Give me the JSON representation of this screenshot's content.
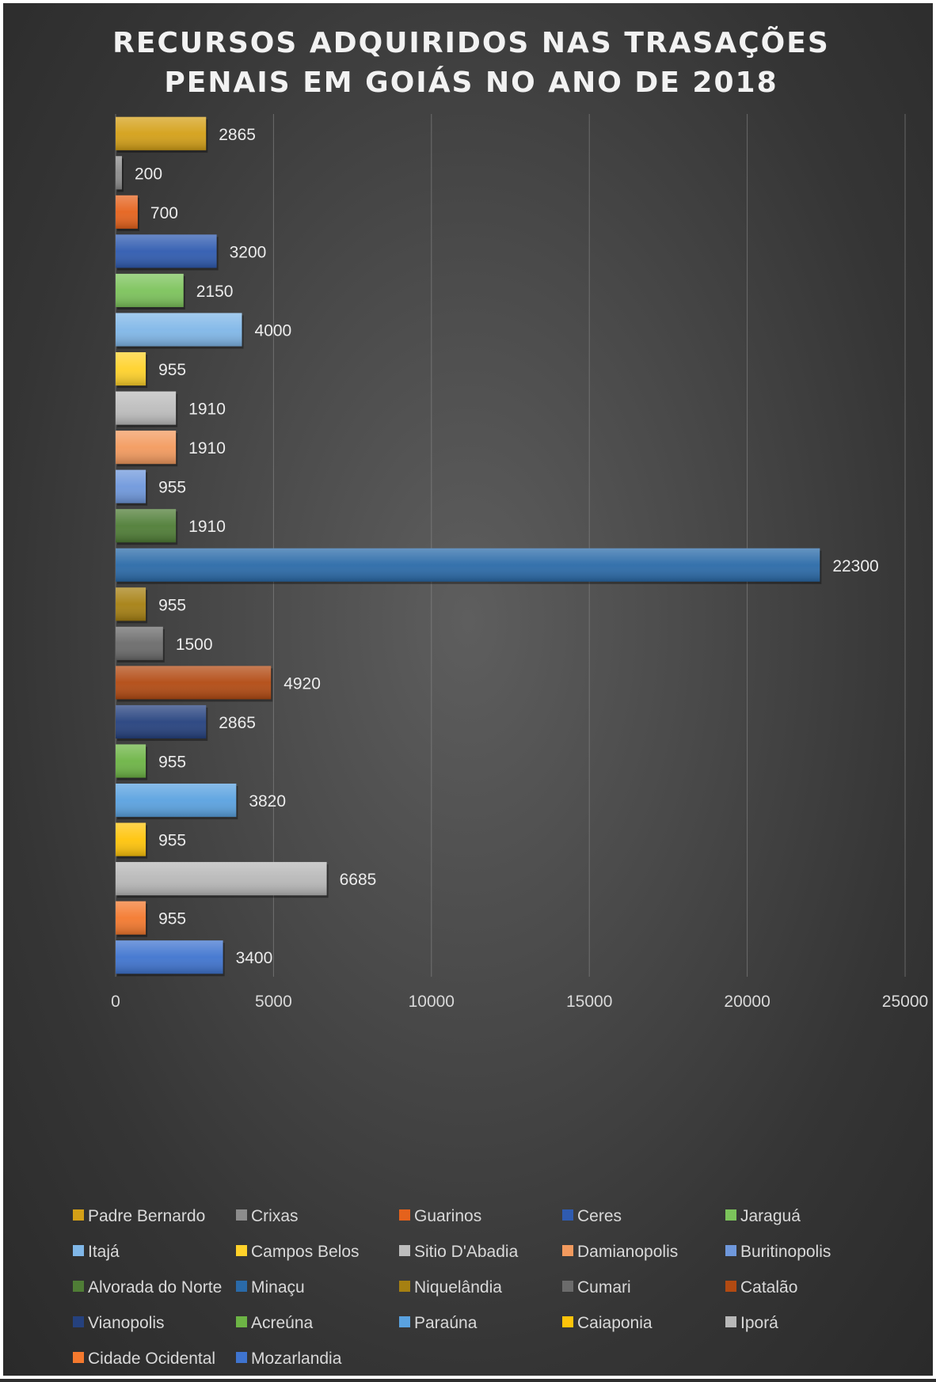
{
  "chart_data": {
    "type": "bar",
    "orientation": "horizontal",
    "title": "RECURSOS ADQUIRIDOS NAS TRASAÇÕES PENAIS EM GOIÁS NO ANO DE 2018",
    "title_lines": [
      "RECURSOS ADQUIRIDOS NAS TRASAÇÕES",
      "PENAIS EM GOIÁS NO ANO DE 2018"
    ],
    "xlim": [
      0,
      25000
    ],
    "x_ticks": [
      "0",
      "5000",
      "10000",
      "15000",
      "20000",
      "25000"
    ],
    "grid": "vertical",
    "legend_position": "bottom",
    "series": [
      {
        "name": "Padre Bernardo",
        "value": 2865,
        "color": "#d4a017"
      },
      {
        "name": "Crixas",
        "value": 200,
        "color": "#8c8c8c"
      },
      {
        "name": "Guarinos",
        "value": 700,
        "color": "#e5621c"
      },
      {
        "name": "Ceres",
        "value": 3200,
        "color": "#2f5bb0"
      },
      {
        "name": "Jaraguá",
        "value": 2150,
        "color": "#7cc35b"
      },
      {
        "name": "Itajá",
        "value": 4000,
        "color": "#80b7e8"
      },
      {
        "name": "Campos Belos",
        "value": 955,
        "color": "#ffd22a"
      },
      {
        "name": "Sitio D'Abadia",
        "value": 1910,
        "color": "#bdbdbd"
      },
      {
        "name": "Damianopolis",
        "value": 1910,
        "color": "#f39a5e"
      },
      {
        "name": "Buritinopolis",
        "value": 955,
        "color": "#6f98dc"
      },
      {
        "name": "Alvorada do Norte",
        "value": 1910,
        "color": "#4f7d36"
      },
      {
        "name": "Minaçu",
        "value": 22300,
        "color": "#2a6aa8"
      },
      {
        "name": "Niquelândia",
        "value": 955,
        "color": "#a68012"
      },
      {
        "name": "Cumari",
        "value": 1500,
        "color": "#6b6b6b"
      },
      {
        "name": "Catalão",
        "value": 4920,
        "color": "#b24a12"
      },
      {
        "name": "Vianopolis",
        "value": 2865,
        "color": "#25417e"
      },
      {
        "name": "Acreúna",
        "value": 955,
        "color": "#6db445"
      },
      {
        "name": "Paraúna",
        "value": 3820,
        "color": "#5aa2e0"
      },
      {
        "name": "Caiaponia",
        "value": 955,
        "color": "#ffc40a"
      },
      {
        "name": "Iporá",
        "value": 6685,
        "color": "#b8b8b8"
      },
      {
        "name": "Cidade Ocidental",
        "value": 955,
        "color": "#f4792e"
      },
      {
        "name": "Mozarlandia",
        "value": 3400,
        "color": "#3f74cf"
      }
    ]
  }
}
